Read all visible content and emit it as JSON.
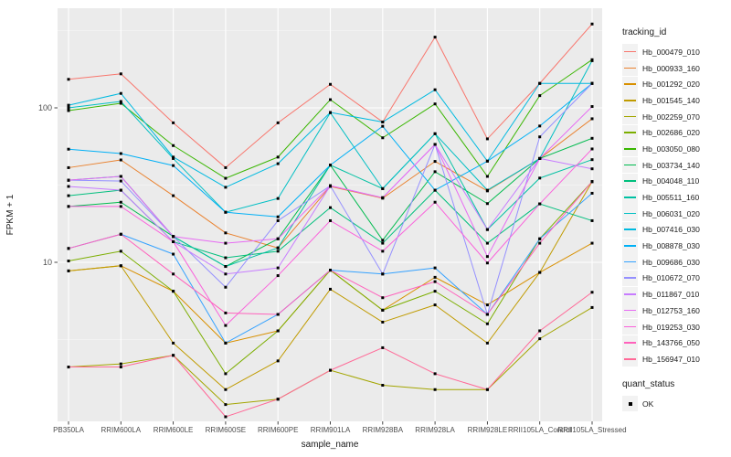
{
  "figure": {
    "x_axis_title": "sample_name",
    "y_axis_title": "FPKM + 1",
    "legend_tracking_title": "tracking_id",
    "legend_quant_title": "quant_status",
    "quant_ok_label": "OK",
    "colors": {
      "panel_bg": "#EBEBEB",
      "grid_major": "#FFFFFF",
      "grid_minor": "#FFFFFF",
      "tick_text": "#4D4D4D",
      "title_text": "#1A1A1A",
      "tick_mark": "#333333",
      "point": "#000000",
      "legend_key_bg": "#F2F2F2"
    }
  },
  "chart_data": {
    "type": "line",
    "title": "",
    "xlabel": "sample_name",
    "ylabel": "FPKM + 1",
    "y_scale": "log10",
    "y_major_ticks": [
      10,
      100
    ],
    "y_minor_ticks": [
      3.162,
      31.62,
      316.2
    ],
    "ylim": [
      0.93,
      440
    ],
    "grid": true,
    "legend_position": "right",
    "point_marker": "black-square",
    "x_categories": [
      "PB350LA",
      "RRIM600LA",
      "RRIM600LE",
      "RRIM600SE",
      "RRIM600PE",
      "RRIM901LA",
      "RRIM928BA",
      "RRIM928LA",
      "RRIM928LE",
      "RRII105LA_Control",
      "RRII105LA_Stressed"
    ],
    "series": [
      {
        "name": "Hb_000479_010",
        "color": "#F8766D",
        "values": [
          153,
          166,
          80,
          41,
          80,
          142,
          81,
          287,
          63,
          144,
          349
        ]
      },
      {
        "name": "Hb_000933_160",
        "color": "#EA8331",
        "values": [
          41,
          46,
          27,
          15.5,
          12.4,
          31,
          26,
          45,
          29,
          47,
          85
        ]
      },
      {
        "name": "Hb_001292_020",
        "color": "#D89000",
        "values": [
          8.8,
          9.5,
          6.5,
          3.0,
          3.6,
          8.9,
          4.9,
          8.0,
          5.3,
          8.6,
          13.3
        ]
      },
      {
        "name": "Hb_001545_140",
        "color": "#C09B00",
        "values": [
          8.8,
          9.5,
          3.0,
          1.5,
          2.3,
          6.7,
          4.1,
          5.3,
          3.0,
          8.6,
          33.3
        ]
      },
      {
        "name": "Hb_002259_070",
        "color": "#A3A500",
        "values": [
          2.1,
          2.2,
          2.5,
          1.2,
          1.3,
          2.0,
          1.6,
          1.5,
          1.5,
          3.2,
          5.1
        ]
      },
      {
        "name": "Hb_002686_020",
        "color": "#7CAE00",
        "values": [
          10.2,
          11.8,
          6.5,
          1.9,
          3.6,
          8.9,
          4.9,
          6.5,
          4.0,
          14.2,
          33.3
        ]
      },
      {
        "name": "Hb_003050_080",
        "color": "#39B600",
        "values": [
          96,
          107,
          57,
          35,
          48,
          113,
          64,
          106,
          36,
          120,
          205
        ]
      },
      {
        "name": "Hb_003734_140",
        "color": "#00BB4E",
        "values": [
          23,
          24.5,
          14.7,
          9.4,
          14.2,
          42.6,
          13.9,
          38.6,
          24,
          47,
          63.5
        ]
      },
      {
        "name": "Hb_004048_110",
        "color": "#00BF7D",
        "values": [
          27,
          29.3,
          13.6,
          10.7,
          11.8,
          22.6,
          13.3,
          29.3,
          13.3,
          23.9,
          18.6
        ]
      },
      {
        "name": "Hb_005511_160",
        "color": "#00C1A3",
        "values": [
          34,
          36,
          14.7,
          9.4,
          12.4,
          42.6,
          30,
          68,
          16.3,
          35.1,
          46.2
        ]
      },
      {
        "name": "Hb_006031_020",
        "color": "#00BFC4",
        "values": [
          100,
          110,
          47,
          21.1,
          25.9,
          93,
          30,
          68,
          29.3,
          47,
          202
        ]
      },
      {
        "name": "Hb_007416_030",
        "color": "#00BAE0",
        "values": [
          104,
          124,
          48,
          30.6,
          43.5,
          93.4,
          81,
          131,
          45.2,
          144,
          144
        ]
      },
      {
        "name": "Hb_008878_030",
        "color": "#00B0F6",
        "values": [
          54,
          50.6,
          42.3,
          21.1,
          19.7,
          42.6,
          76,
          29.3,
          45.2,
          76.3,
          144
        ]
      },
      {
        "name": "Hb_009686_030",
        "color": "#35A2FF",
        "values": [
          12.3,
          15.2,
          11.3,
          3.0,
          4.6,
          8.9,
          8.4,
          9.2,
          4.6,
          14.2,
          28
        ]
      },
      {
        "name": "Hb_010672_070",
        "color": "#9590FF",
        "values": [
          34,
          33.6,
          14.7,
          6.9,
          18.6,
          31.3,
          8.4,
          58,
          4.6,
          64.9,
          144
        ]
      },
      {
        "name": "Hb_011867_010",
        "color": "#C77CFF",
        "values": [
          31,
          29.3,
          13.6,
          8.4,
          9.2,
          31.3,
          26.2,
          58,
          16.3,
          47,
          40.3
        ]
      },
      {
        "name": "Hb_012753_160",
        "color": "#E76BF3",
        "values": [
          34,
          36,
          14.7,
          13.3,
          14.2,
          31.3,
          26.2,
          58,
          10.9,
          47,
          102
        ]
      },
      {
        "name": "Hb_019253_030",
        "color": "#FA62DB",
        "values": [
          23,
          23,
          13.6,
          3.9,
          8.2,
          18.6,
          11.8,
          24.5,
          9.9,
          23.9,
          54.2
        ]
      },
      {
        "name": "Hb_143766_050",
        "color": "#FF62BC",
        "values": [
          12.3,
          15.2,
          8.4,
          4.7,
          4.6,
          8.9,
          5.9,
          7.5,
          4.6,
          13.3,
          33.3
        ]
      },
      {
        "name": "Hb_156947_010",
        "color": "#FF6A98",
        "values": [
          2.1,
          2.1,
          2.5,
          1.0,
          1.3,
          2.0,
          2.8,
          1.9,
          1.5,
          3.6,
          6.4
        ]
      }
    ]
  }
}
